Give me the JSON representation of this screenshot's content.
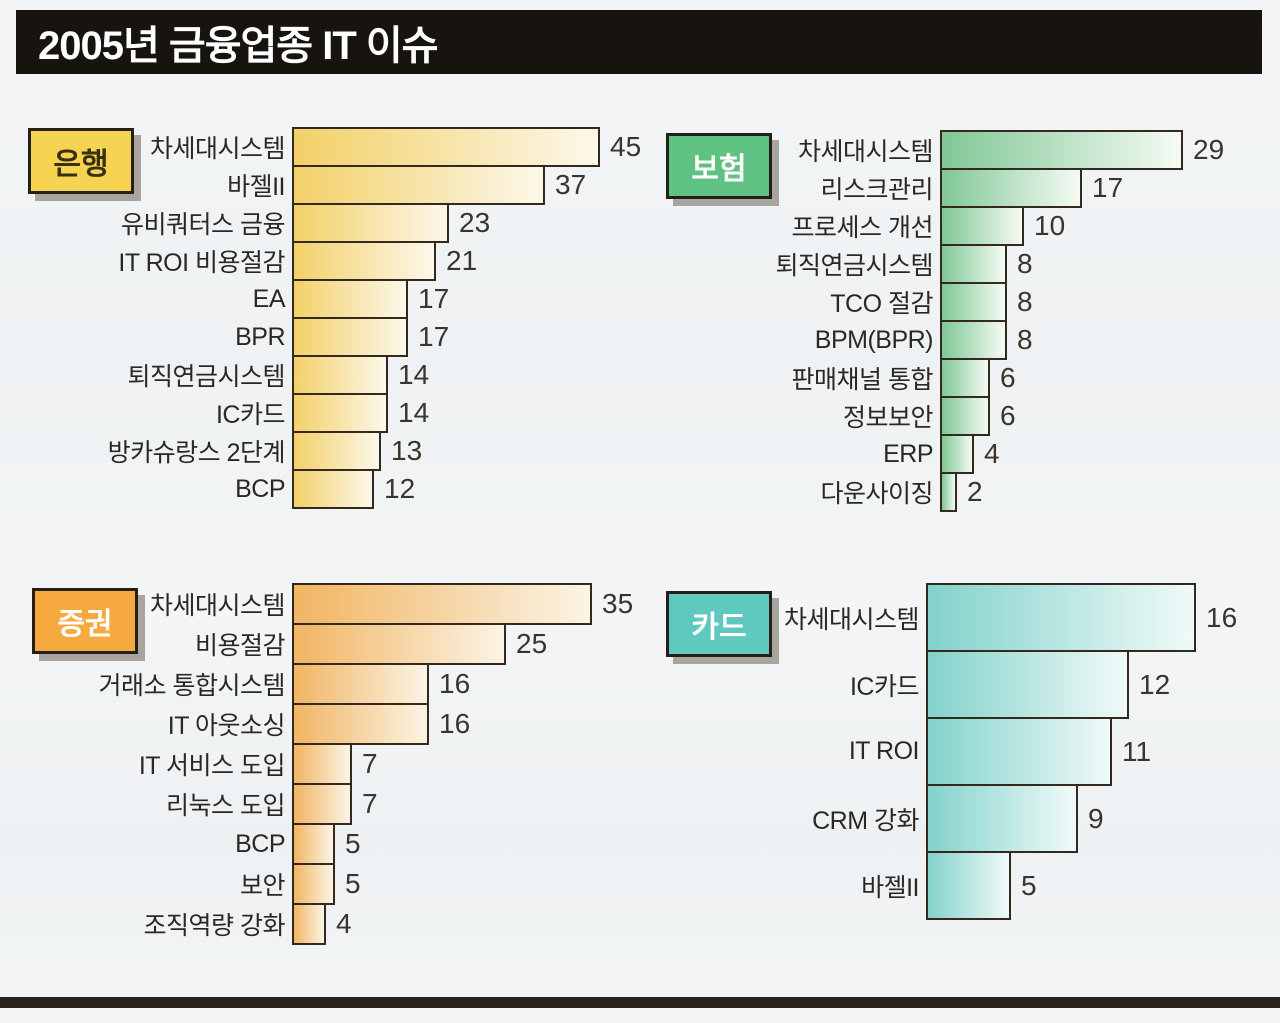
{
  "title": "2005년 금융업종 IT 이슈",
  "colors": {
    "banner_bg": "#17130f",
    "bar_border": "#33291e",
    "page_bg": "#f3f5f6",
    "bottom_rule": "#29231c"
  },
  "chart_data": [
    {
      "type": "bar",
      "orientation": "horizontal",
      "title": "은행",
      "categories": [
        "차세대시스템",
        "바젤II",
        "유비쿼터스 금융",
        "IT ROI 비용절감",
        "EA",
        "BPR",
        "퇴직연금시스템",
        "IC카드",
        "방카슈랑스 2단계",
        "BCP"
      ],
      "values": [
        45,
        37,
        23,
        21,
        17,
        17,
        14,
        14,
        13,
        12
      ],
      "bar_color": "#f3d069",
      "bar_fade": "#fcf8ea",
      "legend_bg": "#f6d351",
      "legend_text_color": "#39300e",
      "data_labels": true,
      "axes_shown": false
    },
    {
      "type": "bar",
      "orientation": "horizontal",
      "title": "보험",
      "categories": [
        "차세대시스템",
        "리스크관리",
        "프로세스 개선",
        "퇴직연금시스템",
        "TCO 절감",
        "BPM(BPR)",
        "판매채널 통합",
        "정보보안",
        "ERP",
        "다운사이징"
      ],
      "values": [
        29,
        17,
        10,
        8,
        8,
        8,
        6,
        6,
        4,
        2
      ],
      "bar_color": "#80c795",
      "bar_fade": "#f5fbf4",
      "legend_bg": "#60c282",
      "legend_text_color": "#ffffff",
      "data_labels": true,
      "axes_shown": false
    },
    {
      "type": "bar",
      "orientation": "horizontal",
      "title": "증권",
      "categories": [
        "차세대시스템",
        "비용절감",
        "거래소 통합시스템",
        "IT 아웃소싱",
        "IT 서비스 도입",
        "리눅스 도입",
        "BCP",
        "보안",
        "조직역량 강화"
      ],
      "values": [
        35,
        25,
        16,
        16,
        7,
        7,
        5,
        5,
        4
      ],
      "bar_color": "#f1b563",
      "bar_fade": "#fbf4e5",
      "legend_bg": "#f6a93f",
      "legend_text_color": "#ffffff",
      "data_labels": true,
      "axes_shown": false
    },
    {
      "type": "bar",
      "orientation": "horizontal",
      "title": "카드",
      "categories": [
        "차세대시스템",
        "IC카드",
        "IT ROI",
        "CRM 강화",
        "바젤II"
      ],
      "values": [
        16,
        12,
        11,
        9,
        5
      ],
      "bar_color": "#83d2cb",
      "bar_fade": "#f0faf8",
      "legend_bg": "#5fc9bf",
      "legend_text_color": "#ffffff",
      "data_labels": true,
      "axes_shown": false
    }
  ]
}
